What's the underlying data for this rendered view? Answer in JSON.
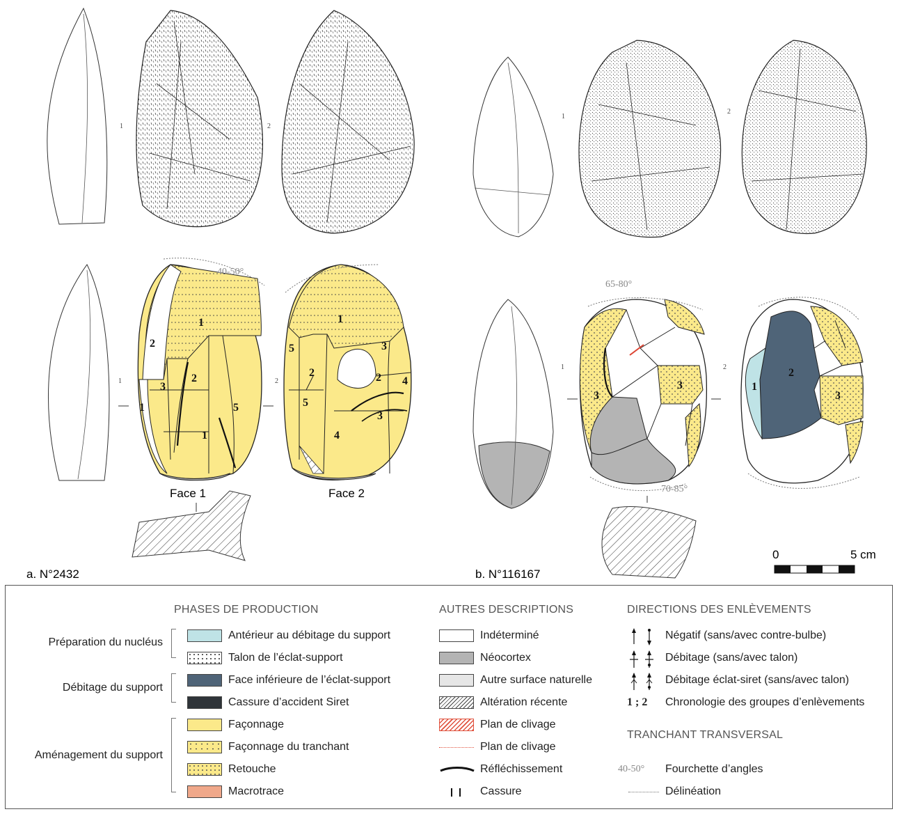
{
  "figure": {
    "artifact_a": {
      "label": "a. N°2432",
      "face1": "Face 1",
      "face2": "Face 2",
      "angle_top": "40-50°"
    },
    "artifact_b": {
      "label": "b. N°116167",
      "angle_top": "65-80°",
      "angle_bottom": "70-85°"
    },
    "scale": {
      "start": "0",
      "end": "5 cm"
    },
    "numbers_a1": [
      "1",
      "2",
      "1",
      "3",
      "2",
      "1",
      "5"
    ],
    "numbers_a2": [
      "1",
      "5",
      "2",
      "3",
      "2",
      "4",
      "5",
      "3",
      "4"
    ],
    "numbers_b1": [
      "3",
      "3"
    ],
    "numbers_b2": [
      "2",
      "1",
      "3"
    ]
  },
  "legend": {
    "phases_title": "PHASES DE PRODUCTION",
    "groups": [
      "Préparation du nucléus",
      "Débitage du support",
      "Aménagement du support"
    ],
    "phases": [
      {
        "label": "Antérieur au débitage du support",
        "color": "#bfe3e6"
      },
      {
        "label": "Talon de l’éclat-support",
        "color": "#ffffff"
      },
      {
        "label": "Face inférieure de l’éclat-support",
        "color": "#4f6478"
      },
      {
        "label": "Cassure d’accident Siret",
        "color": "#2f3439"
      },
      {
        "label": "Façonnage",
        "color": "#fbe98a"
      },
      {
        "label": "Façonnage du tranchant",
        "color": "#fbe98a"
      },
      {
        "label": "Retouche",
        "color": "#fbe98a"
      },
      {
        "label": "Macrotrace",
        "color": "#f0a88a"
      }
    ],
    "autres_title": "AUTRES DESCRIPTIONS",
    "autres": [
      {
        "label": "Indéterminé"
      },
      {
        "label": "Néocortex",
        "color": "#b4b4b4"
      },
      {
        "label": "Autre surface naturelle",
        "color": "#e6e6e6"
      },
      {
        "label": "Altération récente"
      },
      {
        "label": "Plan de clivage"
      },
      {
        "label": "Plan de clivage"
      },
      {
        "label": "Réfléchissement"
      },
      {
        "label": "Cassure"
      }
    ],
    "directions_title": "DIRECTIONS DES ENLÈVEMENTS",
    "directions": [
      {
        "label": "Négatif (sans/avec contre-bulbe)"
      },
      {
        "label": "Débitage (sans/avec talon)"
      },
      {
        "label": "Débitage éclat-siret (sans/avec talon)"
      },
      {
        "label": "Chronologie des groupes d’enlèvements",
        "symbol": "1 ; 2"
      }
    ],
    "tranchant_title": "TRANCHANT TRANSVERSAL",
    "tranchant": [
      {
        "label": "Fourchette d’angles",
        "symbol": "40-50°"
      },
      {
        "label": "Délinéation"
      }
    ]
  }
}
